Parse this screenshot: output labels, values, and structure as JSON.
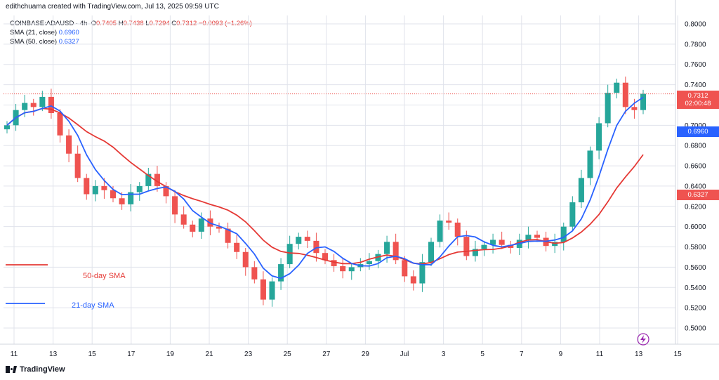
{
  "header": {
    "credit": "edithchuama created with TradingView.com, Jul 13, 2025 09:59 UTC"
  },
  "legend": {
    "symbol": "COINBASE:ADAUSD · 4h",
    "o_label": "O",
    "o_value": "0.7405",
    "h_label": "H",
    "h_value": "0.7438",
    "l_label": "L",
    "l_value": "0.7294",
    "c_label": "C",
    "c_value": "0.7312",
    "change": "−0.0093 (−1.26%)",
    "sma21_label": "SMA (21, close)",
    "sma21_value": "0.6960",
    "sma50_label": "SMA (50, close)",
    "sma50_value": "0.6327"
  },
  "annotations": {
    "sma50": "50-day SMA",
    "sma21": "21-day SMA"
  },
  "price_tags": {
    "last": "0.7312",
    "countdown": "02:00:48",
    "sma21": "0.6960",
    "sma50": "0.6327"
  },
  "brand": {
    "name": "TradingView"
  },
  "colors": {
    "up": "#26a69a",
    "down": "#ef5350",
    "sma21": "#2962ff",
    "sma50": "#e53935",
    "grid": "#e0e3eb"
  },
  "chart_data": {
    "type": "candlestick",
    "title": "",
    "ylim": [
      0.49,
      0.81
    ],
    "y_ticks": [
      "0.8000",
      "0.7800",
      "0.7600",
      "0.7400",
      "0.7200",
      "0.7000",
      "0.6800",
      "0.6600",
      "0.6400",
      "0.6200",
      "0.6000",
      "0.5800",
      "0.5600",
      "0.5400",
      "0.5200",
      "0.5000"
    ],
    "x_ticks": [
      "11",
      "13",
      "15",
      "17",
      "19",
      "21",
      "23",
      "25",
      "27",
      "29",
      "Jul",
      "3",
      "5",
      "7",
      "9",
      "11",
      "13",
      "15"
    ],
    "grid": true,
    "candles_close": [
      0.7,
      0.715,
      0.722,
      0.718,
      0.728,
      0.712,
      0.69,
      0.672,
      0.648,
      0.632,
      0.64,
      0.636,
      0.628,
      0.622,
      0.634,
      0.64,
      0.652,
      0.64,
      0.63,
      0.612,
      0.602,
      0.595,
      0.608,
      0.6,
      0.598,
      0.584,
      0.575,
      0.56,
      0.548,
      0.528,
      0.546,
      0.563,
      0.583,
      0.59,
      0.586,
      0.574,
      0.567,
      0.561,
      0.556,
      0.56,
      0.563,
      0.566,
      0.573,
      0.585,
      0.567,
      0.551,
      0.544,
      0.565,
      0.585,
      0.606,
      0.604,
      0.59,
      0.571,
      0.578,
      0.582,
      0.587,
      0.582,
      0.579,
      0.587,
      0.592,
      0.589,
      0.581,
      0.585,
      0.6,
      0.624,
      0.648,
      0.675,
      0.702,
      0.732,
      0.742,
      0.718,
      0.715,
      0.731
    ],
    "sma21_last": 0.696,
    "sma50_last": 0.6327
  }
}
